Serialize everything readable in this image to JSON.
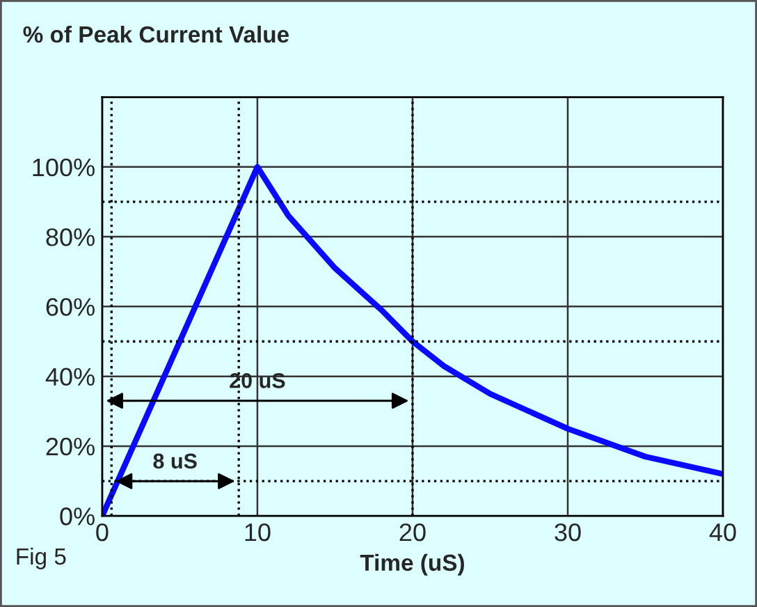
{
  "chart_data": {
    "type": "line",
    "title": "% of Peak Current Value",
    "xlabel": "Time (uS)",
    "x": [
      0,
      10,
      12,
      15,
      18,
      20,
      22,
      25,
      30,
      35,
      40
    ],
    "series": [
      {
        "color": "#0a0aff",
        "values": [
          0,
          100,
          86,
          71,
          59,
          50,
          43,
          35,
          25,
          17,
          12
        ]
      }
    ],
    "xlim": [
      0,
      40
    ],
    "xticks": [
      0,
      10,
      20,
      30,
      40
    ],
    "ylim": [
      0,
      120
    ],
    "yticks": [
      {
        "value": 0,
        "label": "0%"
      },
      {
        "value": 20,
        "label": "20%"
      },
      {
        "value": 40,
        "label": "40%"
      },
      {
        "value": 60,
        "label": "60%"
      },
      {
        "value": 80,
        "label": "80%"
      },
      {
        "value": 100,
        "label": "100%"
      },
      {
        "value": 120,
        "label": null
      }
    ],
    "grid": true,
    "marker": "none",
    "line_style": "solid",
    "ref_lines": [
      {
        "axis": "y",
        "value": 90,
        "line_style": "dotted",
        "color": "#000000"
      },
      {
        "axis": "y",
        "value": 50,
        "line_style": "dotted",
        "color": "#000000"
      },
      {
        "axis": "y",
        "value": 10,
        "line_style": "dotted",
        "color": "#000000"
      },
      {
        "axis": "x",
        "value": 0.6,
        "line_style": "dotted",
        "color": "#000000"
      },
      {
        "axis": "x",
        "value": 8.8,
        "line_style": "dotted",
        "color": "#000000"
      },
      {
        "axis": "x",
        "value": 20,
        "line_style": "dotted",
        "color": "#000000"
      }
    ],
    "annotations": [
      "8 uS",
      "20 uS",
      "Fig 5"
    ]
  }
}
